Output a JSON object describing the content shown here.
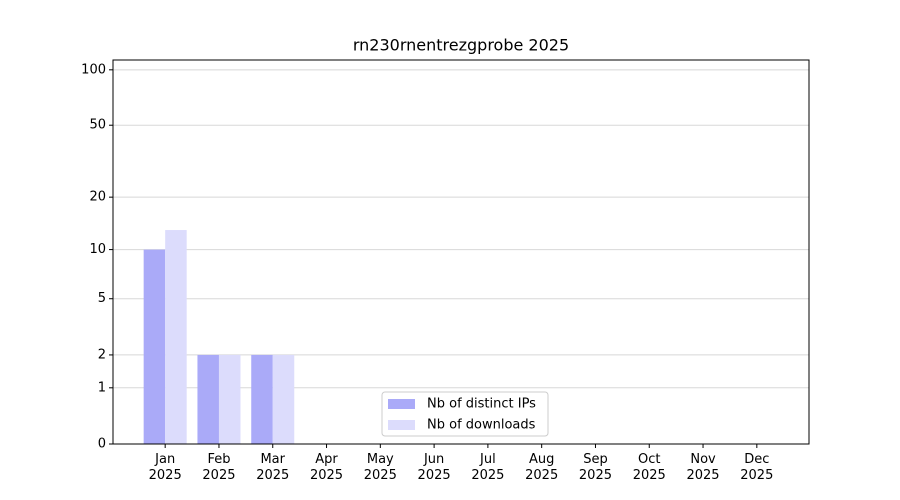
{
  "chart_data": {
    "type": "bar",
    "title": "rn230rnentrezgprobe 2025",
    "categories": [
      "Jan\n2025",
      "Feb\n2025",
      "Mar\n2025",
      "Apr\n2025",
      "May\n2025",
      "Jun\n2025",
      "Jul\n2025",
      "Aug\n2025",
      "Sep\n2025",
      "Oct\n2025",
      "Nov\n2025",
      "Dec\n2025"
    ],
    "series": [
      {
        "name": "Nb of distinct IPs",
        "color": "#aaaaf8",
        "values": [
          10,
          2,
          2,
          0,
          0,
          0,
          0,
          0,
          0,
          0,
          0,
          0
        ]
      },
      {
        "name": "Nb of downloads",
        "color": "#dcdcfc",
        "values": [
          13,
          2,
          2,
          0,
          0,
          0,
          0,
          0,
          0,
          0,
          0,
          0
        ]
      }
    ],
    "yscale": "log1p",
    "ylim": [
      0,
      113
    ],
    "yticks": [
      0,
      1,
      2,
      5,
      10,
      20,
      50,
      100
    ],
    "grid": true,
    "legend": "lower center"
  }
}
